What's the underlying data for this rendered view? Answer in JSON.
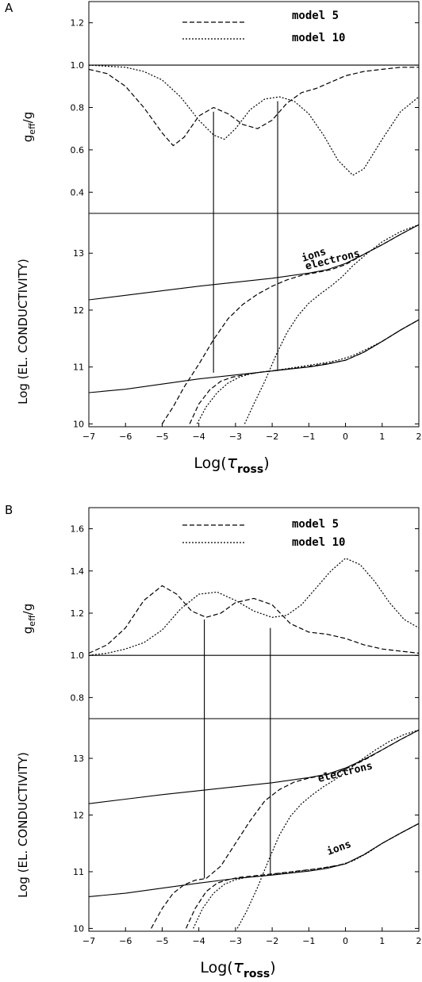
{
  "chart_data": [
    {
      "type": "line",
      "panel": "A",
      "top": {
        "ylabel": "g_eff/g",
        "ylim": [
          0.3,
          1.3
        ],
        "yticks": [
          0.4,
          0.6,
          0.8,
          1.0,
          1.2
        ],
        "legend": [
          {
            "name": "model 5",
            "style": "dashed"
          },
          {
            "name": "model 10",
            "style": "dotted"
          }
        ],
        "series": [
          {
            "name": "model 5",
            "style": "dashed",
            "x": [
              -7,
              -6.5,
              -6,
              -5.5,
              -5,
              -4.7,
              -4.4,
              -4,
              -3.6,
              -3.2,
              -2.8,
              -2.4,
              -2,
              -1.6,
              -1.2,
              -0.8,
              -0.4,
              0,
              0.5,
              1,
              1.5,
              2
            ],
            "y": [
              0.98,
              0.96,
              0.9,
              0.8,
              0.68,
              0.62,
              0.66,
              0.76,
              0.8,
              0.77,
              0.72,
              0.7,
              0.74,
              0.82,
              0.87,
              0.89,
              0.92,
              0.95,
              0.97,
              0.98,
              0.99,
              0.99
            ]
          },
          {
            "name": "model 10",
            "style": "dotted",
            "x": [
              -7,
              -6,
              -5.5,
              -5,
              -4.5,
              -4,
              -3.6,
              -3.3,
              -3,
              -2.6,
              -2.2,
              -1.8,
              -1.4,
              -1,
              -0.6,
              -0.2,
              0.2,
              0.5,
              1,
              1.5,
              2
            ],
            "y": [
              1.0,
              0.99,
              0.97,
              0.93,
              0.85,
              0.74,
              0.67,
              0.65,
              0.7,
              0.79,
              0.84,
              0.85,
              0.83,
              0.77,
              0.67,
              0.55,
              0.48,
              0.51,
              0.65,
              0.78,
              0.85
            ]
          },
          {
            "name": "reference",
            "style": "solid",
            "x": [
              -7,
              2
            ],
            "y": [
              1.0,
              1.0
            ]
          }
        ]
      },
      "bottom": {
        "ylabel": "Log (EL. CONDUCTIVITY)",
        "ylim": [
          9.95,
          13.7
        ],
        "yticks": [
          10,
          11,
          12,
          13
        ],
        "annotations": [
          {
            "text": "electrons",
            "x": -0.8,
            "y": 12.95
          },
          {
            "text": "ions",
            "x": -1.3,
            "y": 11.3
          }
        ],
        "series": [
          {
            "name": "electrons",
            "style": "solid",
            "x": [
              -7,
              -6,
              -5,
              -4,
              -3,
              -2,
              -1,
              -0.5,
              0,
              0.5,
              1,
              1.5,
              2
            ],
            "y": [
              12.18,
              12.26,
              12.34,
              12.42,
              12.49,
              12.56,
              12.65,
              12.71,
              12.82,
              12.98,
              13.15,
              13.33,
              13.5
            ]
          },
          {
            "name": "ions",
            "style": "solid",
            "x": [
              -7,
              -6,
              -5,
              -4,
              -3,
              -2,
              -1,
              -0.5,
              0,
              0.5,
              1,
              1.5,
              2
            ],
            "y": [
              10.55,
              10.61,
              10.7,
              10.79,
              10.86,
              10.93,
              11.0,
              11.05,
              11.12,
              11.26,
              11.45,
              11.65,
              11.83
            ]
          },
          {
            "name": "model 5",
            "style": "dashed",
            "x": [
              -5,
              -4.7,
              -4.4,
              -4,
              -3.6,
              -3.2,
              -2.8,
              -2.4,
              -2,
              -1.6,
              -1.2,
              -0.8,
              -0.4,
              0,
              0.5,
              1,
              1.5,
              2
            ],
            "y": [
              10.0,
              10.3,
              10.65,
              11.05,
              11.48,
              11.85,
              12.1,
              12.28,
              12.42,
              12.53,
              12.61,
              12.66,
              12.71,
              12.8,
              12.98,
              13.15,
              13.33,
              13.5
            ]
          },
          {
            "name": "model 10",
            "style": "dashed",
            "x": [
              -4.25,
              -4,
              -3.7,
              -3.4,
              -3.1,
              -2.7,
              -2.3,
              -1.9,
              -1.5,
              -1.1,
              -0.7,
              -0.3,
              0,
              0.5,
              1,
              1.5,
              2
            ],
            "y": [
              10.0,
              10.35,
              10.6,
              10.75,
              10.82,
              10.87,
              10.91,
              10.94,
              10.97,
              11.0,
              11.04,
              11.08,
              11.12,
              11.26,
              11.45,
              11.65,
              11.83
            ]
          },
          {
            "name": "model 5",
            "style": "dotted",
            "x": [
              -4.05,
              -3.8,
              -3.5,
              -3.2,
              -2.9,
              -2.6,
              -2.3,
              -2,
              -1.7,
              -1.4,
              -1.1,
              -0.8,
              -0.5,
              -0.2,
              0.2,
              0.6,
              1,
              1.5,
              2
            ],
            "y": [
              10.0,
              10.3,
              10.55,
              10.72,
              10.82,
              10.88,
              10.91,
              10.93,
              10.96,
              10.99,
              11.02,
              11.05,
              11.08,
              11.12,
              11.2,
              11.32,
              11.45,
              11.65,
              11.83
            ]
          },
          {
            "name": "model 10",
            "style": "dotted",
            "x": [
              -2.75,
              -2.5,
              -2.2,
              -1.9,
              -1.6,
              -1.3,
              -1,
              -0.7,
              -0.4,
              -0.1,
              0.2,
              0.6,
              1,
              1.5,
              2
            ],
            "y": [
              10.0,
              10.35,
              10.75,
              11.2,
              11.6,
              11.9,
              12.12,
              12.28,
              12.42,
              12.58,
              12.78,
              13.0,
              13.2,
              13.38,
              13.5
            ]
          }
        ]
      },
      "vertical_lines": [
        {
          "x": -3.6,
          "y_top_geff": 0.78,
          "y_bottom_cond": 10.9
        },
        {
          "x": -1.85,
          "y_top_geff": 0.83,
          "y_bottom_cond": 10.93
        }
      ],
      "xlabel": "Log(τross)",
      "xlim": [
        -7,
        2
      ],
      "xticks": [
        -7,
        -6,
        -5,
        -4,
        -3,
        -2,
        -1,
        0,
        1,
        2
      ]
    },
    {
      "type": "line",
      "panel": "B",
      "top": {
        "ylabel": "g_eff/g",
        "ylim": [
          0.7,
          1.7
        ],
        "yticks": [
          0.8,
          1.0,
          1.2,
          1.4,
          1.6
        ],
        "legend": [
          {
            "name": "model 5",
            "style": "dashed"
          },
          {
            "name": "model 10",
            "style": "dotted"
          }
        ],
        "series": [
          {
            "name": "model 5",
            "style": "dashed",
            "x": [
              -7,
              -6.5,
              -6,
              -5.5,
              -5,
              -4.6,
              -4.2,
              -3.8,
              -3.4,
              -3,
              -2.5,
              -2,
              -1.5,
              -1,
              -0.5,
              0,
              0.5,
              1,
              1.5,
              2
            ],
            "y": [
              1.01,
              1.05,
              1.13,
              1.26,
              1.33,
              1.29,
              1.21,
              1.18,
              1.2,
              1.25,
              1.27,
              1.24,
              1.15,
              1.11,
              1.1,
              1.08,
              1.05,
              1.03,
              1.02,
              1.01
            ]
          },
          {
            "name": "model 10",
            "style": "dotted",
            "x": [
              -7,
              -6.5,
              -6,
              -5.5,
              -5,
              -4.5,
              -4,
              -3.5,
              -3,
              -2.5,
              -2,
              -1.6,
              -1.2,
              -0.8,
              -0.4,
              0,
              0.4,
              0.8,
              1.2,
              1.6,
              2
            ],
            "y": [
              1.0,
              1.01,
              1.03,
              1.06,
              1.12,
              1.22,
              1.29,
              1.3,
              1.26,
              1.21,
              1.18,
              1.19,
              1.24,
              1.32,
              1.4,
              1.46,
              1.43,
              1.35,
              1.25,
              1.17,
              1.13
            ]
          },
          {
            "name": "reference",
            "style": "solid",
            "x": [
              -7,
              2
            ],
            "y": [
              1.0,
              1.0
            ]
          }
        ]
      },
      "bottom": {
        "ylabel": "Log (EL. CONDUCTIVITY)",
        "ylim": [
          9.95,
          13.7
        ],
        "yticks": [
          10,
          11,
          12,
          13
        ],
        "annotations": [
          {
            "text": "electrons",
            "x": -0.5,
            "y": 12.98
          },
          {
            "text": "ions",
            "x": -1.0,
            "y": 11.35
          }
        ],
        "series": [
          {
            "name": "electrons",
            "style": "solid",
            "x": [
              -7,
              -6,
              -5,
              -4,
              -3,
              -2,
              -1,
              -0.5,
              0,
              0.5,
              1,
              1.5,
              2
            ],
            "y": [
              12.2,
              12.28,
              12.36,
              12.43,
              12.5,
              12.57,
              12.66,
              12.72,
              12.83,
              12.98,
              13.15,
              13.33,
              13.5
            ]
          },
          {
            "name": "ions",
            "style": "solid",
            "x": [
              -7,
              -6,
              -5,
              -4,
              -3,
              -2,
              -1,
              -0.5,
              0,
              0.5,
              1,
              1.5,
              2
            ],
            "y": [
              10.56,
              10.62,
              10.71,
              10.8,
              10.88,
              10.94,
              11.01,
              11.06,
              11.14,
              11.3,
              11.5,
              11.68,
              11.85
            ]
          },
          {
            "name": "model 5",
            "style": "dashed",
            "x": [
              -5.3,
              -5,
              -4.7,
              -4.4,
              -4.1,
              -3.8,
              -3.4,
              -3,
              -2.6,
              -2.2,
              -1.8,
              -1.4,
              -1,
              -0.6,
              -0.2,
              0.2,
              0.6,
              1,
              1.5,
              2
            ],
            "y": [
              10.0,
              10.35,
              10.62,
              10.77,
              10.85,
              10.88,
              11.1,
              11.5,
              11.9,
              12.25,
              12.45,
              12.58,
              12.65,
              12.7,
              12.76,
              12.87,
              13.0,
              13.15,
              13.33,
              13.5
            ]
          },
          {
            "name": "model 10",
            "style": "dashed",
            "x": [
              -4.35,
              -4.1,
              -3.8,
              -3.5,
              -3.2,
              -2.9,
              -2.6,
              -2.3,
              -2,
              -1.6,
              -1.2,
              -0.8,
              -0.4,
              0,
              0.5,
              1,
              1.5,
              2
            ],
            "y": [
              10.0,
              10.35,
              10.65,
              10.8,
              10.86,
              10.9,
              10.92,
              10.94,
              10.96,
              10.99,
              11.02,
              11.05,
              11.09,
              11.14,
              11.3,
              11.5,
              11.68,
              11.85
            ]
          },
          {
            "name": "model 5",
            "style": "dotted",
            "x": [
              -4.15,
              -3.9,
              -3.6,
              -3.3,
              -3,
              -2.7,
              -2.4,
              -2.1,
              -1.8,
              -1.4,
              -1,
              -0.6,
              -0.2,
              0.2,
              0.6,
              1,
              1.5,
              2
            ],
            "y": [
              10.0,
              10.35,
              10.62,
              10.78,
              10.86,
              10.9,
              10.92,
              10.94,
              10.97,
              11.0,
              11.03,
              11.07,
              11.11,
              11.19,
              11.33,
              11.5,
              11.68,
              11.85
            ]
          },
          {
            "name": "model 10",
            "style": "dotted",
            "x": [
              -2.95,
              -2.7,
              -2.4,
              -2.1,
              -1.8,
              -1.5,
              -1.2,
              -0.9,
              -0.6,
              -0.3,
              0,
              0.4,
              0.8,
              1.2,
              1.6,
              2
            ],
            "y": [
              10.0,
              10.3,
              10.72,
              11.2,
              11.65,
              11.98,
              12.2,
              12.36,
              12.5,
              12.62,
              12.76,
              12.96,
              13.14,
              13.3,
              13.42,
              13.5
            ]
          }
        ]
      },
      "vertical_lines": [
        {
          "x": -3.85,
          "y_top_geff": 1.17,
          "y_bottom_cond": 10.88
        },
        {
          "x": -2.05,
          "y_top_geff": 1.13,
          "y_bottom_cond": 10.96
        }
      ],
      "xlabel": "Log(τross)",
      "xlim": [
        -7,
        2
      ],
      "xticks": [
        -7,
        -6,
        -5,
        -4,
        -3,
        -2,
        -1,
        0,
        1,
        2
      ]
    }
  ],
  "labels": {
    "panel_a": "A",
    "panel_b": "B",
    "ylabel_geff_main": "g",
    "ylabel_geff_sub": "eff",
    "ylabel_geff_rest": "/g",
    "ylabel_cond": "Log (EL. CONDUCTIVITY)",
    "xlabel_main": "Log(",
    "xlabel_tau": "τ",
    "xlabel_sub": "ross",
    "xlabel_close": ")"
  }
}
